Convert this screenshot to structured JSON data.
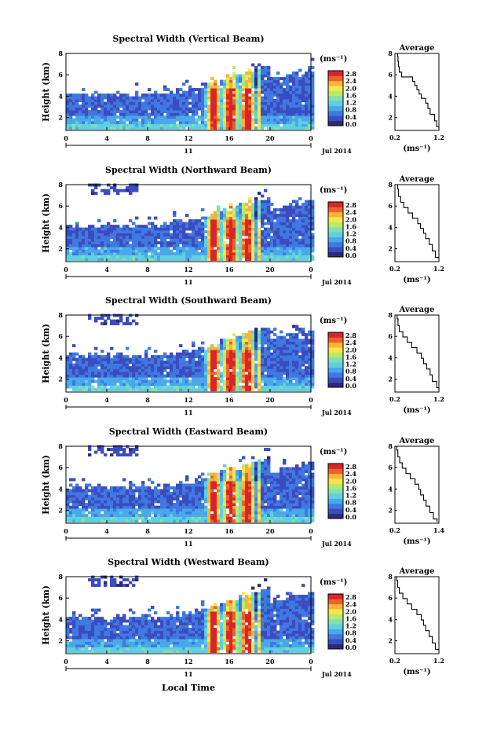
{
  "figure": {
    "xlabel": "Local Time",
    "date_label": "Jul 2014",
    "day_label": "11",
    "x_ticks": [
      "0",
      "4",
      "8",
      "12",
      "16",
      "20",
      "0"
    ],
    "y_ticks": [
      "2",
      "4",
      "6",
      "8"
    ],
    "ylabel": "Height (km)",
    "colorbar_unit": "(ms⁻¹)",
    "colorbar_ticks": [
      "0.0",
      "0.4",
      "0.8",
      "1.2",
      "1.6",
      "2.0",
      "2.4",
      "2.8"
    ],
    "average_title": "Average",
    "average_unit": "(ms⁻¹)"
  },
  "colors": {
    "scale": [
      "#2c2a7a",
      "#3b4cc0",
      "#3f78e0",
      "#4aa8ea",
      "#5fd0e0",
      "#7fe0b0",
      "#b8e870",
      "#f2e84a",
      "#f6b43a",
      "#f0602a",
      "#d7262a"
    ]
  },
  "chart_data": [
    {
      "type": "heatmap",
      "title": "Spectral Width (Vertical Beam)",
      "xlabel": "Local Time",
      "ylabel": "Height (km)",
      "xlim": [
        0,
        24
      ],
      "ylim": [
        0.8,
        8
      ],
      "clim": [
        0.0,
        2.8
      ],
      "average": {
        "xlim": [
          0.2,
          1.2
        ],
        "x_ticks": [
          "0.2",
          "1.2"
        ],
        "x": [
          1.2,
          1.15,
          1.1,
          1.0,
          0.95,
          0.9,
          0.8,
          0.75,
          0.7,
          0.65,
          0.6,
          0.35,
          0.3,
          0.28,
          0.27,
          0.26
        ],
        "y": [
          0.9,
          1.4,
          2.0,
          2.6,
          3.1,
          3.6,
          4.0,
          4.4,
          4.8,
          5.2,
          5.6,
          6.0,
          6.5,
          7.0,
          7.5,
          8.0
        ]
      }
    },
    {
      "type": "heatmap",
      "title": "Spectral Width (Northward Beam)",
      "xlabel": "Local Time",
      "ylabel": "Height (km)",
      "xlim": [
        0,
        24
      ],
      "ylim": [
        0.8,
        8
      ],
      "clim": [
        0.0,
        2.8
      ],
      "average": {
        "xlim": [
          0.2,
          1.2
        ],
        "x_ticks": [
          "0.2",
          "1.2"
        ],
        "x": [
          1.2,
          1.12,
          1.05,
          0.98,
          0.9,
          0.85,
          0.78,
          0.72,
          0.6,
          0.5,
          0.4,
          0.33,
          0.28,
          0.26
        ],
        "y": [
          0.9,
          1.5,
          2.1,
          2.7,
          3.2,
          3.7,
          4.1,
          4.6,
          5.1,
          5.6,
          6.1,
          6.6,
          7.2,
          8.0
        ]
      }
    },
    {
      "type": "heatmap",
      "title": "Spectral Width (Southward Beam)",
      "xlabel": "Local Time",
      "ylabel": "Height (km)",
      "xlim": [
        0,
        24
      ],
      "ylim": [
        0.8,
        8
      ],
      "clim": [
        0.0,
        2.8
      ],
      "average": {
        "xlim": [
          0.2,
          1.2
        ],
        "x_ticks": [
          "0.2",
          "1.2"
        ],
        "x": [
          1.2,
          1.15,
          1.05,
          1.0,
          0.92,
          0.85,
          0.8,
          0.7,
          0.58,
          0.48,
          0.38,
          0.3,
          0.27,
          0.25
        ],
        "y": [
          0.9,
          1.5,
          2.1,
          2.7,
          3.2,
          3.7,
          4.2,
          4.7,
          5.2,
          5.7,
          6.2,
          6.7,
          7.3,
          8.0
        ]
      }
    },
    {
      "type": "heatmap",
      "title": "Spectral Width (Eastward Beam)",
      "xlabel": "Local Time",
      "ylabel": "Height (km)",
      "xlim": [
        0,
        24
      ],
      "ylim": [
        0.8,
        8
      ],
      "clim": [
        0.0,
        2.8
      ],
      "average": {
        "xlim": [
          0.2,
          1.4
        ],
        "x_ticks": [
          "0.2",
          "1.4"
        ],
        "x": [
          1.35,
          1.25,
          1.15,
          1.05,
          0.98,
          0.9,
          0.85,
          0.75,
          0.62,
          0.5,
          0.4,
          0.33,
          0.28,
          0.25
        ],
        "y": [
          0.9,
          1.5,
          2.1,
          2.7,
          3.2,
          3.7,
          4.2,
          4.7,
          5.2,
          5.7,
          6.2,
          6.7,
          7.3,
          8.0
        ]
      }
    },
    {
      "type": "heatmap",
      "title": "Spectral Width (Westward Beam)",
      "xlabel": "Local Time",
      "ylabel": "Height (km)",
      "xlim": [
        0,
        24
      ],
      "ylim": [
        0.8,
        8
      ],
      "clim": [
        0.0,
        2.8
      ],
      "average": {
        "xlim": [
          0.2,
          1.2
        ],
        "x_ticks": [
          "0.2",
          "1.2"
        ],
        "x": [
          1.2,
          1.12,
          1.05,
          0.98,
          0.9,
          0.85,
          0.8,
          0.7,
          0.58,
          0.48,
          0.38,
          0.3,
          0.26,
          0.24
        ],
        "y": [
          0.9,
          1.5,
          2.1,
          2.7,
          3.2,
          3.7,
          4.2,
          4.7,
          5.2,
          5.7,
          6.2,
          6.7,
          7.3,
          8.0
        ]
      }
    }
  ]
}
